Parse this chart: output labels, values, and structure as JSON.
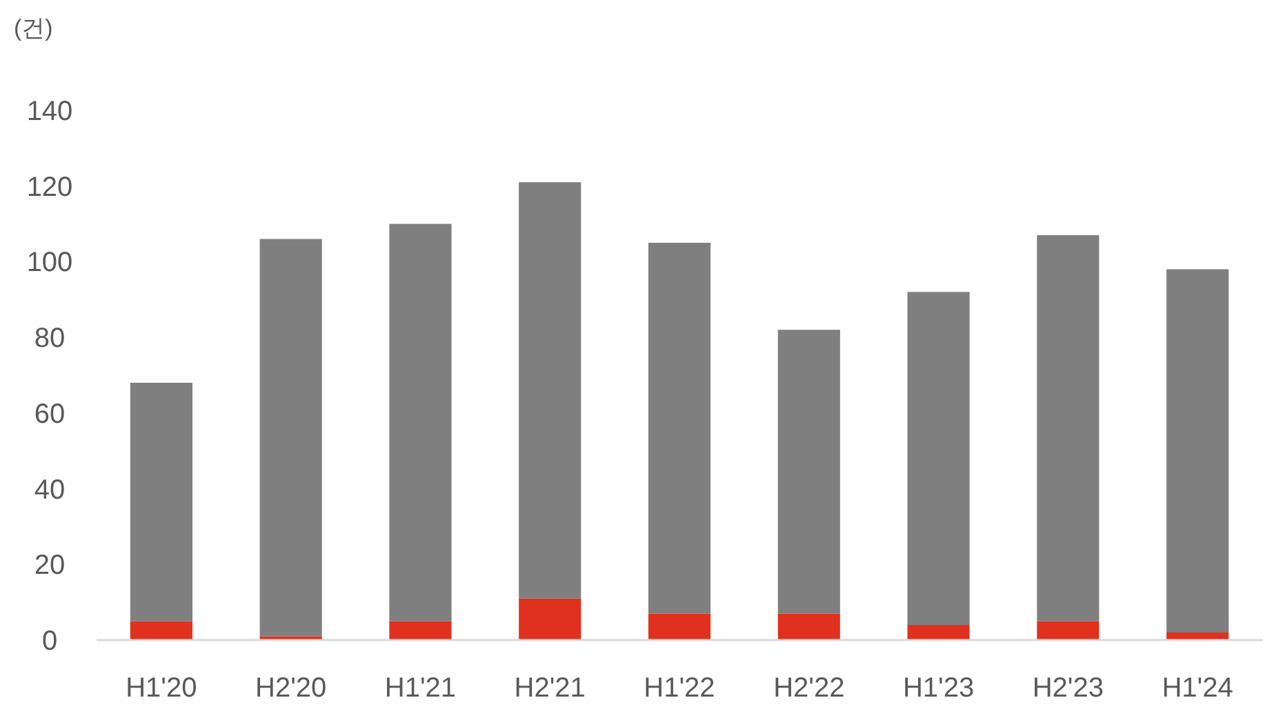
{
  "chart_data": {
    "type": "bar",
    "stacked": true,
    "ylabel": "(건)",
    "categories": [
      "H1'20",
      "H2'20",
      "H1'21",
      "H2'21",
      "H1'22",
      "H2'22",
      "H1'23",
      "H2'23",
      "H1'24"
    ],
    "series": [
      {
        "color": "#e0301e",
        "values": [
          5,
          1,
          5,
          11,
          7,
          7,
          4,
          5,
          2
        ]
      },
      {
        "color": "#7f7f7f",
        "values": [
          63,
          105,
          105,
          110,
          98,
          75,
          88,
          102,
          96
        ]
      }
    ],
    "ylim": [
      0,
      140
    ],
    "yticks": [
      0,
      20,
      40,
      60,
      80,
      100,
      120,
      140
    ],
    "grid": false
  }
}
